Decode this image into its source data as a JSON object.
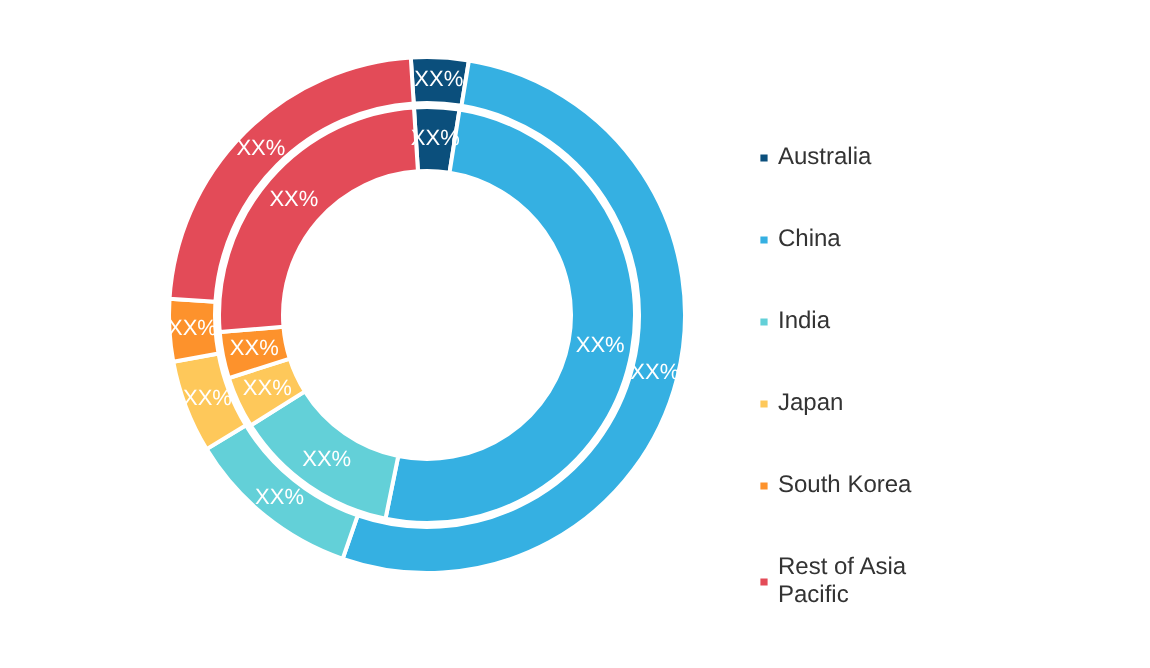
{
  "chart_data": {
    "type": "donut",
    "categories": [
      "Australia",
      "China",
      "India",
      "Japan",
      "South Korea",
      "Rest of Asia Pacific"
    ],
    "colors": [
      "#0b4f7c",
      "#35b0e2",
      "#63d0d8",
      "#fec85a",
      "#fd922c",
      "#e34b58"
    ],
    "series": [
      {
        "values": [
          3.6,
          52.7,
          11.0,
          5.8,
          3.9,
          23.0
        ],
        "value_labels": [
          "XX%",
          "XX%",
          "XX%",
          "XX%",
          "XX%",
          "XX%"
        ]
      },
      {
        "values": [
          3.5,
          50.7,
          12.9,
          4.0,
          3.6,
          25.3
        ],
        "value_labels": [
          "XX%",
          "XX%",
          "XX%",
          "XX%",
          "XX%",
          "XX%"
        ]
      }
    ],
    "legend": "right"
  }
}
